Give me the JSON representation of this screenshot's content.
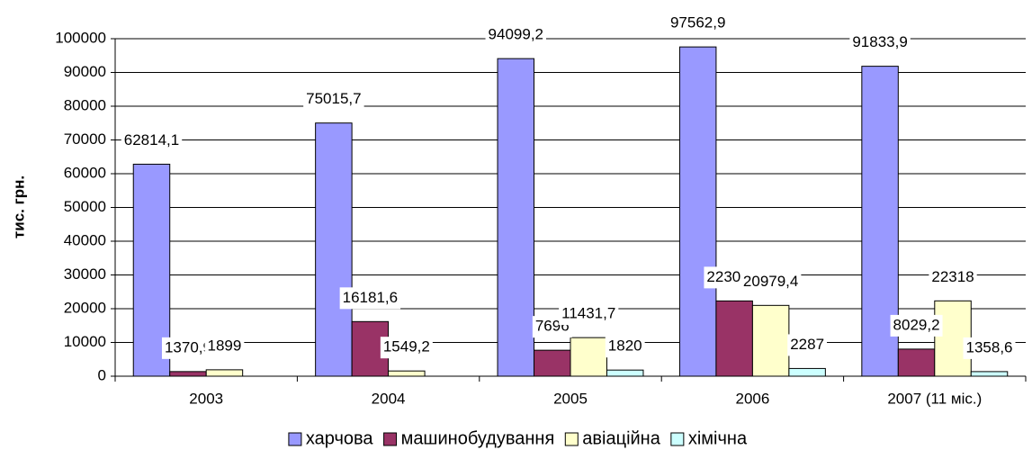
{
  "chart_data": {
    "type": "bar",
    "ylabel": "тис. грн.",
    "categories": [
      "2003",
      "2004",
      "2005",
      "2006",
      "2007 (11 міс.)"
    ],
    "series": [
      {
        "name": "харчова",
        "color": "#9999ff",
        "values": [
          62814.1,
          75015.7,
          94099.2,
          97562.9,
          91833.9
        ],
        "value_labels": [
          "62814,1",
          "75015,7",
          "94099,2",
          "97562,9",
          "91833,9"
        ]
      },
      {
        "name": "машинобудування",
        "color": "#993366",
        "values": [
          1370.9,
          16181.6,
          7696,
          22301.8,
          8029.2
        ],
        "value_labels": [
          "1370,9",
          "16181,6",
          "7696",
          "22301,8",
          "8029,2"
        ]
      },
      {
        "name": "авіаційна",
        "color": "#ffffcc",
        "values": [
          1899,
          1549.2,
          11431.7,
          20979.4,
          22318
        ],
        "value_labels": [
          "1899",
          "1549,2",
          "11431,7",
          "20979,4",
          "22318"
        ]
      },
      {
        "name": "хімічна",
        "color": "#ccffff",
        "values": [
          null,
          null,
          1820,
          2287,
          1358.6
        ],
        "value_labels": [
          null,
          null,
          "1820",
          "2287",
          "1358,6"
        ]
      }
    ],
    "ylim": [
      0,
      100000
    ],
    "yticks": [
      0,
      10000,
      20000,
      30000,
      40000,
      50000,
      60000,
      70000,
      80000,
      90000,
      100000
    ],
    "grid": true,
    "legend": "bottom"
  }
}
